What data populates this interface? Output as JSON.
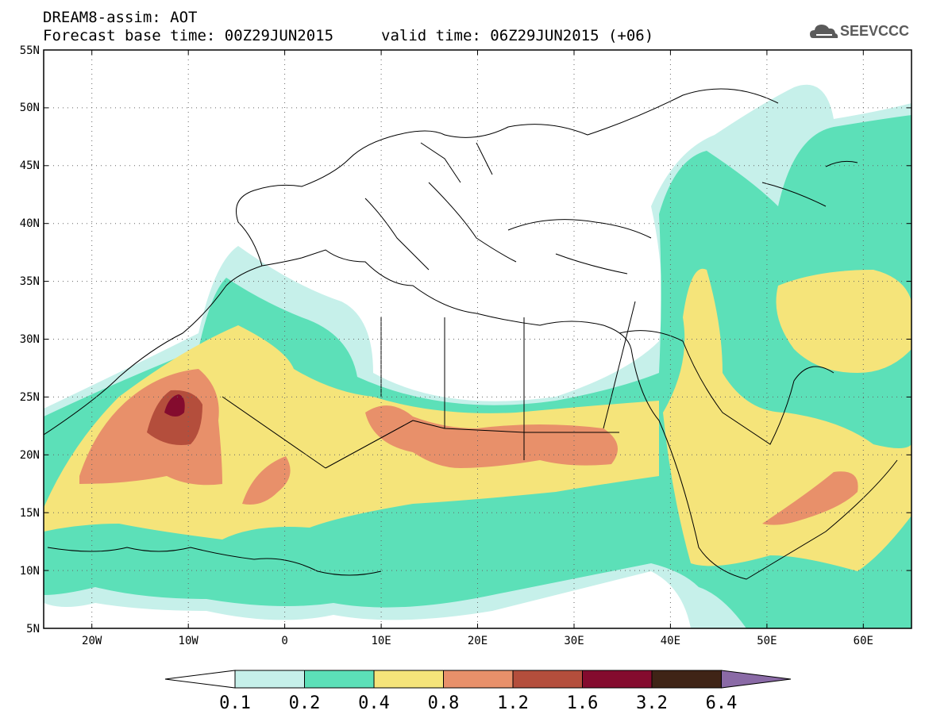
{
  "header": {
    "line1": "DREAM8-assim: AOT",
    "line2": "Forecast base time: 00Z29JUN2015",
    "line2b": "valid time: 06Z29JUN2015 (+06)"
  },
  "logo": {
    "text": "SEEVCCC",
    "icon": "cloud-logo-icon"
  },
  "map": {
    "lon_range": [
      -25,
      65
    ],
    "lat_range": [
      5,
      55
    ],
    "grid": "dotted",
    "lat_labels": [
      "5N",
      "10N",
      "15N",
      "20N",
      "25N",
      "30N",
      "35N",
      "40N",
      "45N",
      "50N",
      "55N"
    ],
    "lon_labels": [
      "20W",
      "10W",
      "0",
      "10E",
      "20E",
      "30E",
      "40E",
      "50E",
      "60E"
    ]
  },
  "legend": {
    "colors": [
      "#c6f0ea",
      "#5ce0b8",
      "#f5e47a",
      "#e8906a",
      "#b44e3c",
      "#840b2e",
      "#3f2416",
      "#8a6aa6"
    ],
    "labels": [
      "0.1",
      "0.2",
      "0.4",
      "0.8",
      "1.2",
      "1.6",
      "3.2",
      "6.4"
    ]
  }
}
